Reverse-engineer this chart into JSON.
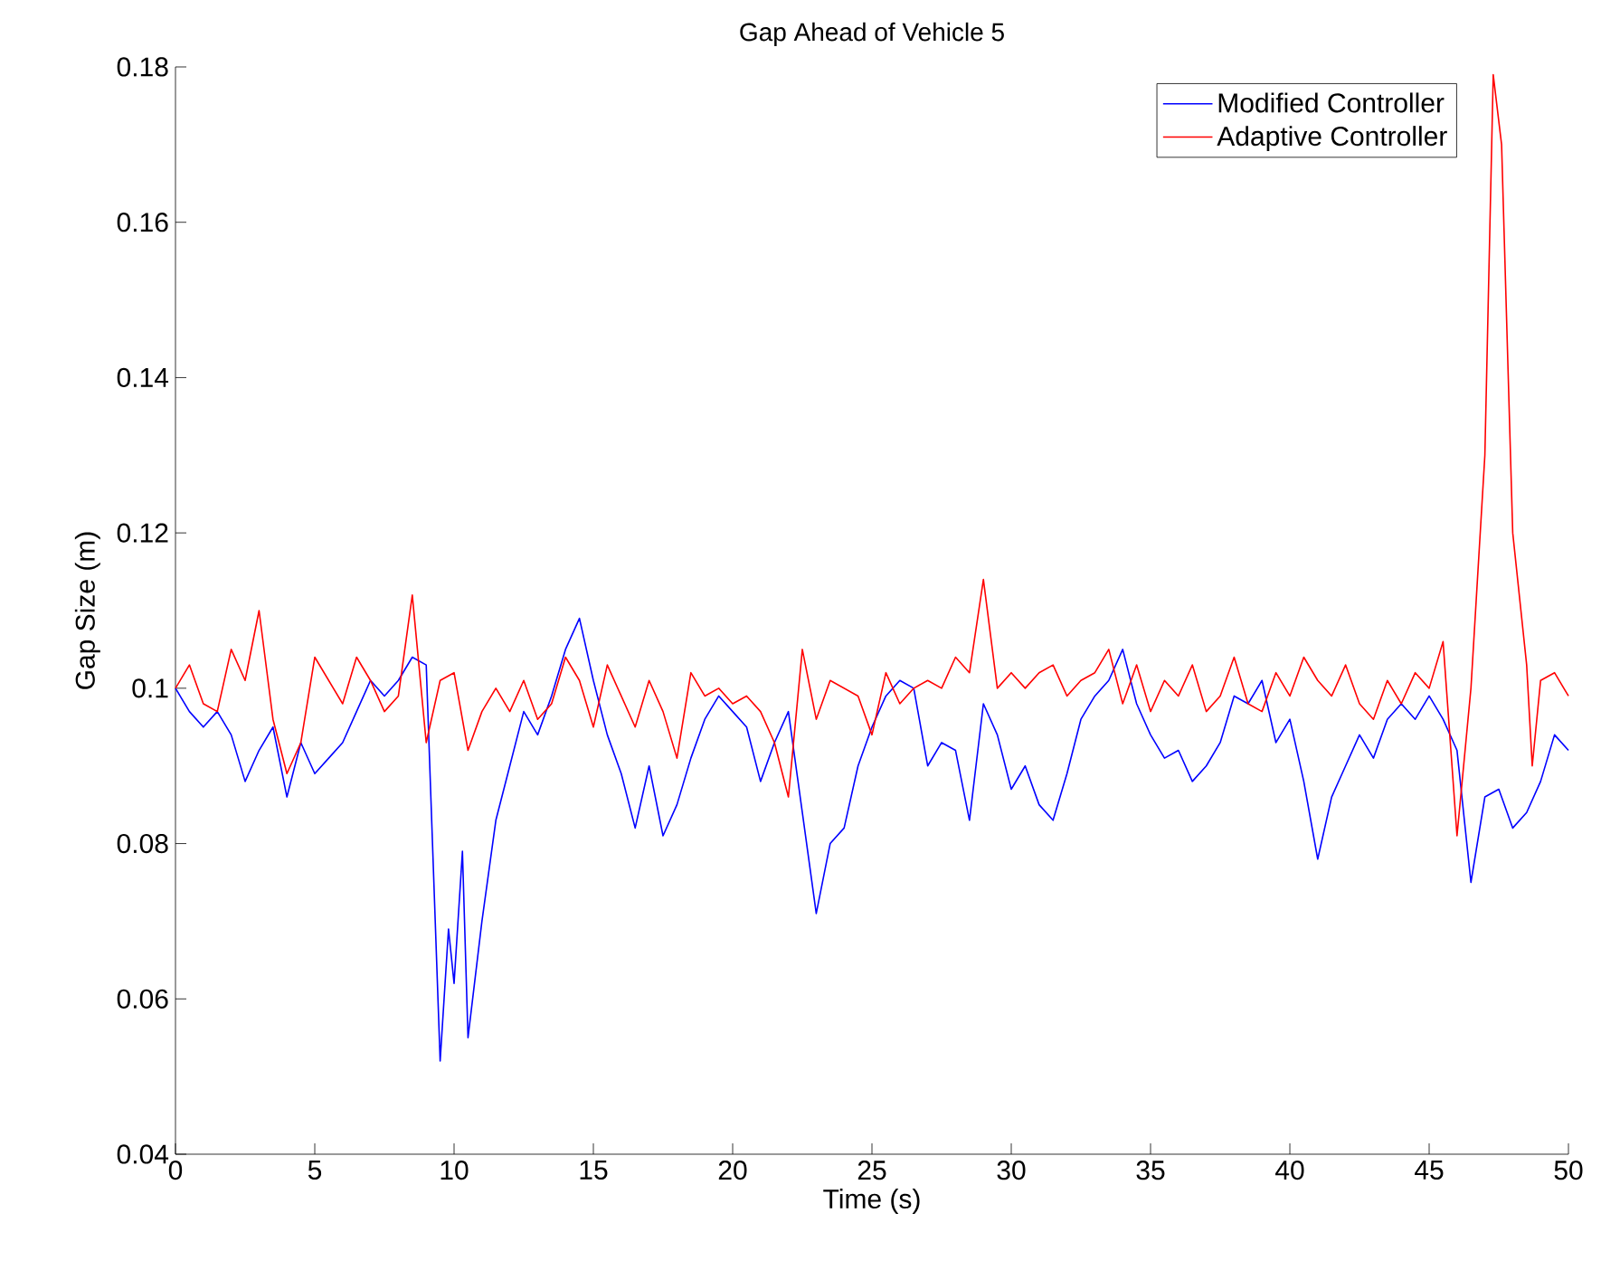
{
  "chart_data": {
    "type": "line",
    "title": "Gap Ahead of Vehicle 5",
    "xlabel": "Time (s)",
    "ylabel": "Gap Size (m)",
    "xlim": [
      0,
      50
    ],
    "ylim": [
      0.04,
      0.18
    ],
    "xticks": [
      0,
      5,
      10,
      15,
      20,
      25,
      30,
      35,
      40,
      45,
      50
    ],
    "yticks": [
      0.04,
      0.06,
      0.08,
      0.1,
      0.12,
      0.14,
      0.16,
      0.18
    ],
    "legend": "top right",
    "grid": false,
    "marker": "none",
    "line_style": "solid",
    "series": [
      {
        "name": "Modified Controller",
        "color": "#0000ff",
        "x": [
          0,
          0.5,
          1,
          1.5,
          2,
          2.5,
          3,
          3.5,
          4,
          4.5,
          5,
          5.5,
          6,
          6.5,
          7,
          7.5,
          8,
          8.5,
          9,
          9.5,
          9.8,
          10,
          10.3,
          10.5,
          11,
          11.5,
          12,
          12.5,
          13,
          13.5,
          14,
          14.5,
          15,
          15.5,
          16,
          16.5,
          17,
          17.5,
          18,
          18.5,
          19,
          19.5,
          20,
          20.5,
          21,
          21.5,
          22,
          22.5,
          23,
          23.5,
          24,
          24.5,
          25,
          25.5,
          26,
          26.5,
          27,
          27.5,
          28,
          28.5,
          29,
          29.5,
          30,
          30.5,
          31,
          31.5,
          32,
          32.5,
          33,
          33.5,
          34,
          34.5,
          35,
          35.5,
          36,
          36.5,
          37,
          37.5,
          38,
          38.5,
          39,
          39.5,
          40,
          40.5,
          41,
          41.5,
          42,
          42.5,
          43,
          43.5,
          44,
          44.5,
          45,
          45.5,
          46,
          46.5,
          47,
          47.5,
          48,
          48.5,
          49,
          49.5,
          50
        ],
        "values": [
          0.1,
          0.097,
          0.095,
          0.097,
          0.094,
          0.088,
          0.092,
          0.095,
          0.086,
          0.093,
          0.089,
          0.091,
          0.093,
          0.097,
          0.101,
          0.099,
          0.101,
          0.104,
          0.103,
          0.052,
          0.069,
          0.062,
          0.079,
          0.055,
          0.07,
          0.083,
          0.09,
          0.097,
          0.094,
          0.099,
          0.105,
          0.109,
          0.101,
          0.094,
          0.089,
          0.082,
          0.09,
          0.081,
          0.085,
          0.091,
          0.096,
          0.099,
          0.097,
          0.095,
          0.088,
          0.093,
          0.097,
          0.084,
          0.071,
          0.08,
          0.082,
          0.09,
          0.095,
          0.099,
          0.101,
          0.1,
          0.09,
          0.093,
          0.092,
          0.083,
          0.098,
          0.094,
          0.087,
          0.09,
          0.085,
          0.083,
          0.089,
          0.096,
          0.099,
          0.101,
          0.105,
          0.098,
          0.094,
          0.091,
          0.092,
          0.088,
          0.09,
          0.093,
          0.099,
          0.098,
          0.101,
          0.093,
          0.096,
          0.088,
          0.078,
          0.086,
          0.09,
          0.094,
          0.091,
          0.096,
          0.098,
          0.096,
          0.099,
          0.096,
          0.092,
          0.075,
          0.086,
          0.087,
          0.082,
          0.084,
          0.088,
          0.094,
          0.092
        ]
      },
      {
        "name": "Adaptive Controller",
        "color": "#ff0000",
        "x": [
          0,
          0.5,
          1,
          1.5,
          2,
          2.5,
          3,
          3.5,
          4,
          4.5,
          5,
          5.5,
          6,
          6.5,
          7,
          7.5,
          8,
          8.5,
          9,
          9.5,
          10,
          10.5,
          11,
          11.5,
          12,
          12.5,
          13,
          13.5,
          14,
          14.5,
          15,
          15.5,
          16,
          16.5,
          17,
          17.5,
          18,
          18.5,
          19,
          19.5,
          20,
          20.5,
          21,
          21.5,
          22,
          22.5,
          23,
          23.5,
          24,
          24.5,
          25,
          25.5,
          26,
          26.5,
          27,
          27.5,
          28,
          28.5,
          29,
          29.5,
          30,
          30.5,
          31,
          31.5,
          32,
          32.5,
          33,
          33.5,
          34,
          34.5,
          35,
          35.5,
          36,
          36.5,
          37,
          37.5,
          38,
          38.5,
          39,
          39.5,
          40,
          40.5,
          41,
          41.5,
          42,
          42.5,
          43,
          43.5,
          44,
          44.5,
          45,
          45.5,
          46,
          46.5,
          47,
          47.3,
          47.6,
          48,
          48.5,
          48.7,
          49,
          49.5,
          50
        ],
        "values": [
          0.1,
          0.103,
          0.098,
          0.097,
          0.105,
          0.101,
          0.11,
          0.096,
          0.089,
          0.093,
          0.104,
          0.101,
          0.098,
          0.104,
          0.101,
          0.097,
          0.099,
          0.112,
          0.093,
          0.101,
          0.102,
          0.092,
          0.097,
          0.1,
          0.097,
          0.101,
          0.096,
          0.098,
          0.104,
          0.101,
          0.095,
          0.103,
          0.099,
          0.095,
          0.101,
          0.097,
          0.091,
          0.102,
          0.099,
          0.1,
          0.098,
          0.099,
          0.097,
          0.093,
          0.086,
          0.105,
          0.096,
          0.101,
          0.1,
          0.099,
          0.094,
          0.102,
          0.098,
          0.1,
          0.101,
          0.1,
          0.104,
          0.102,
          0.114,
          0.1,
          0.102,
          0.1,
          0.102,
          0.103,
          0.099,
          0.101,
          0.102,
          0.105,
          0.098,
          0.103,
          0.097,
          0.101,
          0.099,
          0.103,
          0.097,
          0.099,
          0.104,
          0.098,
          0.097,
          0.102,
          0.099,
          0.104,
          0.101,
          0.099,
          0.103,
          0.098,
          0.096,
          0.101,
          0.098,
          0.102,
          0.1,
          0.106,
          0.081,
          0.1,
          0.13,
          0.179,
          0.17,
          0.12,
          0.103,
          0.09,
          0.101,
          0.102,
          0.099
        ]
      }
    ]
  }
}
